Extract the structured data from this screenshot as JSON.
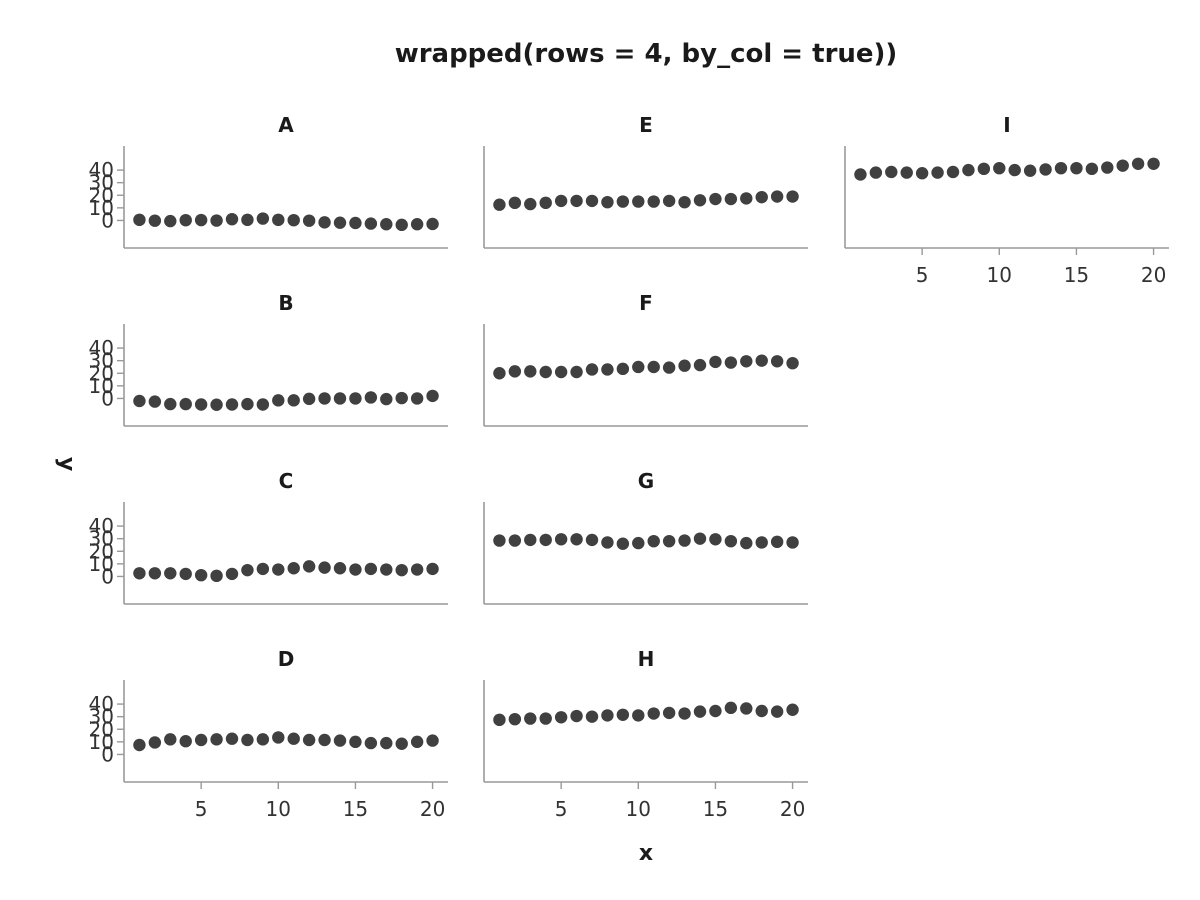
{
  "chart_data": {
    "type": "scatter",
    "title": "wrapped(rows = 4, by_col = true))",
    "xlabel": "x",
    "ylabel": "y",
    "layout": "wrapped",
    "rows": 4,
    "by_col": true,
    "marker_color": "#404040",
    "xlim": [
      0,
      21
    ],
    "ylim": [
      -6,
      48
    ],
    "x_ticks": [
      5,
      10,
      15,
      20
    ],
    "y_ticks": [
      0,
      10,
      20,
      30,
      40
    ],
    "x": [
      1,
      2,
      3,
      4,
      5,
      6,
      7,
      8,
      9,
      10,
      11,
      12,
      13,
      14,
      15,
      16,
      17,
      18,
      19,
      20
    ],
    "panels": [
      {
        "name": "A",
        "values": [
          0.5,
          -0.2,
          -0.5,
          0.2,
          0.3,
          -0.1,
          1.0,
          0.5,
          1.5,
          0.5,
          0.2,
          -0.2,
          -1.5,
          -1.8,
          -2.0,
          -2.5,
          -3.0,
          -3.5,
          -3.0,
          -2.8
        ]
      },
      {
        "name": "B",
        "values": [
          -2.0,
          -2.5,
          -4.5,
          -4.5,
          -4.8,
          -5.0,
          -4.8,
          -4.5,
          -4.8,
          -1.5,
          -1.5,
          -0.3,
          0.0,
          0.0,
          0.0,
          0.8,
          -0.5,
          0.3,
          0.0,
          2.0
        ]
      },
      {
        "name": "C",
        "values": [
          2.5,
          2.5,
          2.5,
          2.0,
          1.0,
          0.5,
          2.0,
          5.0,
          6.0,
          5.5,
          6.5,
          8.0,
          7.0,
          6.5,
          5.5,
          6.0,
          5.5,
          5.0,
          5.5,
          6.0
        ]
      },
      {
        "name": "D",
        "values": [
          7.5,
          9.5,
          12.0,
          10.5,
          11.5,
          12.0,
          12.5,
          11.5,
          12.0,
          13.5,
          12.5,
          11.5,
          11.5,
          11.0,
          10.0,
          9.0,
          9.0,
          8.5,
          10.0,
          11.0
        ]
      },
      {
        "name": "E",
        "values": [
          12.5,
          14.0,
          13.0,
          14.0,
          15.5,
          15.5,
          15.5,
          14.5,
          15.0,
          15.0,
          15.0,
          15.5,
          14.5,
          16.0,
          17.0,
          17.0,
          17.5,
          18.5,
          19.0,
          19.0
        ]
      },
      {
        "name": "F",
        "values": [
          20.0,
          21.5,
          21.5,
          21.0,
          21.0,
          21.0,
          23.0,
          23.0,
          23.5,
          25.0,
          25.0,
          24.5,
          26.0,
          26.5,
          29.0,
          28.5,
          29.5,
          30.0,
          29.5,
          28.0
        ]
      },
      {
        "name": "G",
        "values": [
          28.5,
          28.5,
          29.0,
          29.0,
          29.5,
          29.5,
          29.0,
          27.0,
          26.0,
          26.5,
          28.0,
          28.0,
          28.5,
          30.0,
          29.5,
          28.0,
          26.5,
          27.0,
          27.5,
          27.0
        ]
      },
      {
        "name": "H",
        "values": [
          27.5,
          28.0,
          28.5,
          28.5,
          29.5,
          30.5,
          30.0,
          31.0,
          31.5,
          31.0,
          32.5,
          33.0,
          32.5,
          34.0,
          34.5,
          37.0,
          36.5,
          34.5,
          34.0,
          35.5
        ]
      },
      {
        "name": "I",
        "values": [
          36.5,
          38.0,
          38.5,
          38.0,
          37.5,
          38.0,
          38.5,
          40.0,
          41.0,
          41.5,
          40.0,
          39.5,
          40.5,
          41.5,
          41.5,
          41.0,
          42.0,
          43.5,
          45.0,
          45.0
        ]
      }
    ]
  }
}
